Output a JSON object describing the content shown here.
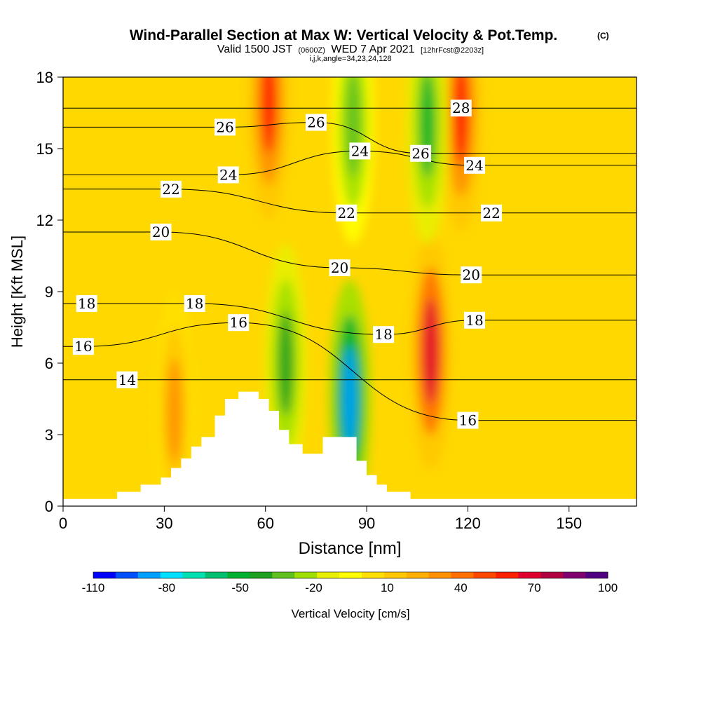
{
  "chart_data": {
    "type": "heatmap",
    "title": "Wind-Parallel Section at Max W: Vertical Velocity & Pot.Temp.",
    "title_mark": "(C)",
    "subtitle_valid": "Valid 1500 JST",
    "subtitle_zulu": "(0600Z)",
    "subtitle_date": "WED 7 Apr 2021",
    "subtitle_fcst": "[12hrFcst@2203z]",
    "subtitle_index": "i,j,k,angle=34,23,24,128",
    "xlabel": "Distance [nm]",
    "ylabel": "Height [Kft MSL]",
    "xlim": [
      0,
      170
    ],
    "ylim": [
      0,
      18
    ],
    "x_ticks": [
      0,
      30,
      60,
      90,
      120,
      150
    ],
    "y_ticks": [
      0,
      3,
      6,
      9,
      12,
      15,
      18
    ],
    "colorbar": {
      "label": "Vertical Velocity [cm/s]",
      "ticks": [
        "-110",
        "-80",
        "-50",
        "-20",
        "10",
        "40",
        "70",
        "100"
      ],
      "colors": [
        "#0000ff",
        "#0050ff",
        "#00a0ff",
        "#00e0ff",
        "#00e0b0",
        "#00c070",
        "#00b030",
        "#20a020",
        "#60c020",
        "#a0e000",
        "#e8f000",
        "#ffff00",
        "#ffe000",
        "#ffc800",
        "#ffb000",
        "#ff9000",
        "#ff7000",
        "#ff4800",
        "#ff2000",
        "#e00030",
        "#b00040",
        "#800070",
        "#500080"
      ]
    },
    "vertical_velocity_features": [
      {
        "kind": "updraft",
        "x_nm": 109,
        "y_kft": 6.5,
        "max_cm_s": 70
      },
      {
        "kind": "updraft",
        "x_nm": 61,
        "y_kft": 17,
        "max_cm_s": 60
      },
      {
        "kind": "updraft",
        "x_nm": 118,
        "y_kft": 16.5,
        "max_cm_s": 55
      },
      {
        "kind": "updraft",
        "x_nm": 33,
        "y_kft": 4,
        "max_cm_s": 30
      },
      {
        "kind": "downdraft",
        "x_nm": 85,
        "y_kft": 4.5,
        "min_cm_s": -90
      },
      {
        "kind": "downdraft",
        "x_nm": 66,
        "y_kft": 6,
        "min_cm_s": -45
      },
      {
        "kind": "downdraft",
        "x_nm": 108,
        "y_kft": 16,
        "min_cm_s": -50
      },
      {
        "kind": "downdraft",
        "x_nm": 86,
        "y_kft": 16,
        "min_cm_s": -35
      }
    ],
    "theta_contour_labels": [
      {
        "value": "28",
        "x_nm": 118,
        "y_kft": 16.7
      },
      {
        "value": "26",
        "x_nm": 48,
        "y_kft": 15.9
      },
      {
        "value": "26",
        "x_nm": 75,
        "y_kft": 16.1
      },
      {
        "value": "26",
        "x_nm": 106,
        "y_kft": 14.8
      },
      {
        "value": "24",
        "x_nm": 88,
        "y_kft": 14.9
      },
      {
        "value": "24",
        "x_nm": 122,
        "y_kft": 14.3
      },
      {
        "value": "24",
        "x_nm": 49,
        "y_kft": 13.9
      },
      {
        "value": "22",
        "x_nm": 32,
        "y_kft": 13.3
      },
      {
        "value": "22",
        "x_nm": 84,
        "y_kft": 12.3
      },
      {
        "value": "22",
        "x_nm": 127,
        "y_kft": 12.3
      },
      {
        "value": "20",
        "x_nm": 29,
        "y_kft": 11.5
      },
      {
        "value": "20",
        "x_nm": 82,
        "y_kft": 10.0
      },
      {
        "value": "20",
        "x_nm": 121,
        "y_kft": 9.7
      },
      {
        "value": "18",
        "x_nm": 7,
        "y_kft": 8.5
      },
      {
        "value": "18",
        "x_nm": 39,
        "y_kft": 8.5
      },
      {
        "value": "18",
        "x_nm": 95,
        "y_kft": 7.2
      },
      {
        "value": "18",
        "x_nm": 122,
        "y_kft": 7.8
      },
      {
        "value": "16",
        "x_nm": 52,
        "y_kft": 7.7
      },
      {
        "value": "16",
        "x_nm": 6,
        "y_kft": 6.7
      },
      {
        "value": "16",
        "x_nm": 120,
        "y_kft": 3.6
      },
      {
        "value": "14",
        "x_nm": 19,
        "y_kft": 5.3
      }
    ],
    "terrain_kft": [
      [
        0,
        0.3
      ],
      [
        16,
        0.3
      ],
      [
        16,
        0.6
      ],
      [
        23,
        0.6
      ],
      [
        23,
        0.9
      ],
      [
        29,
        0.9
      ],
      [
        29,
        1.2
      ],
      [
        32,
        1.2
      ],
      [
        32,
        1.6
      ],
      [
        35,
        1.6
      ],
      [
        35,
        2.0
      ],
      [
        38,
        2.0
      ],
      [
        38,
        2.5
      ],
      [
        41,
        2.5
      ],
      [
        41,
        2.9
      ],
      [
        45,
        2.9
      ],
      [
        45,
        3.8
      ],
      [
        48,
        3.8
      ],
      [
        48,
        4.5
      ],
      [
        52,
        4.5
      ],
      [
        52,
        4.8
      ],
      [
        58,
        4.8
      ],
      [
        58,
        4.5
      ],
      [
        61,
        4.5
      ],
      [
        61,
        4.0
      ],
      [
        64,
        4.0
      ],
      [
        64,
        3.2
      ],
      [
        67,
        3.2
      ],
      [
        67,
        2.6
      ],
      [
        71,
        2.6
      ],
      [
        71,
        2.2
      ],
      [
        77,
        2.2
      ],
      [
        77,
        2.9
      ],
      [
        87,
        2.9
      ],
      [
        87,
        1.9
      ],
      [
        90,
        1.9
      ],
      [
        90,
        1.3
      ],
      [
        93,
        1.3
      ],
      [
        93,
        0.9
      ],
      [
        96,
        0.9
      ],
      [
        96,
        0.6
      ],
      [
        103,
        0.6
      ],
      [
        103,
        0.3
      ],
      [
        170,
        0.3
      ],
      [
        170,
        0
      ],
      [
        0,
        0
      ]
    ]
  }
}
